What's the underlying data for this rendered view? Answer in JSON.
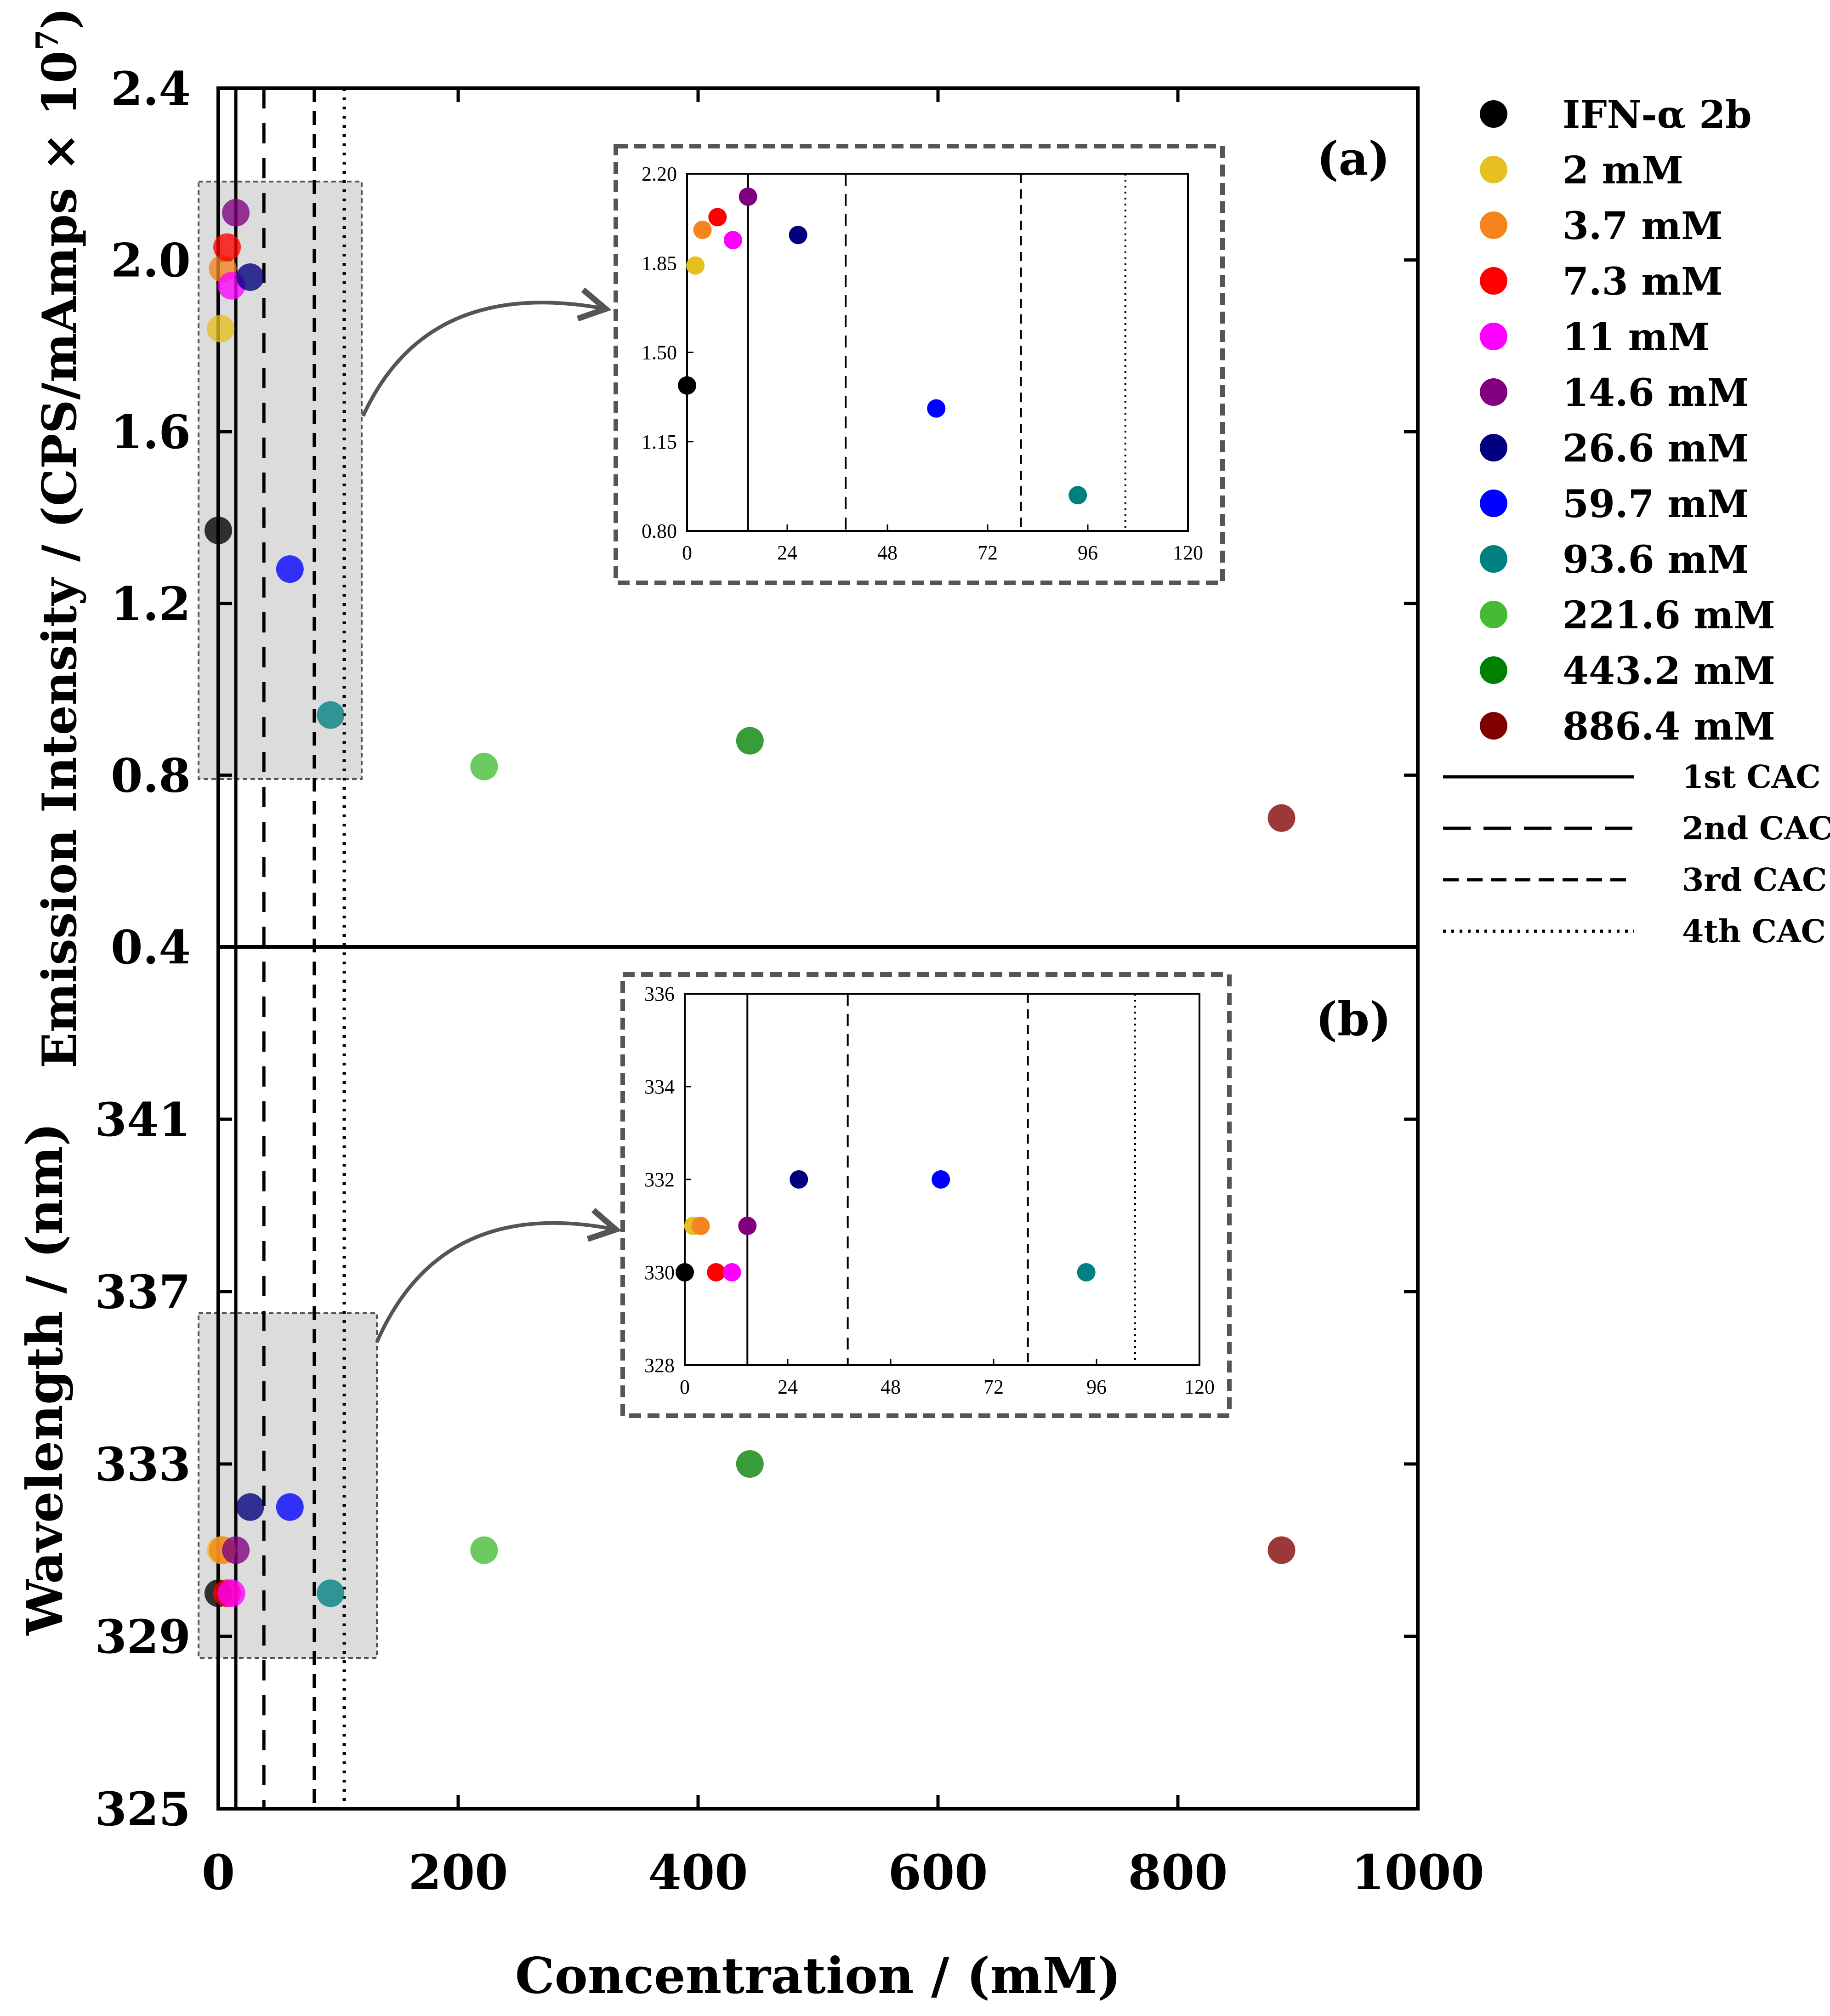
{
  "chart_data": {
    "type": "scatter",
    "x_label": "Concentration / (mM)",
    "x_range": [
      0,
      1000
    ],
    "x_ticks": [
      "0",
      "200",
      "400",
      "600",
      "800",
      "1000"
    ],
    "series_names": [
      "IFN-α 2b",
      "2 mM",
      "3.7 mM",
      "7.3 mM",
      "11 mM",
      "14.6 mM",
      "26.6 mM",
      "59.7 mM",
      "93.6 mM",
      "221.6 mM",
      "443.2 mM",
      "886.4 mM"
    ],
    "colors": [
      "#000000",
      "#e6c020",
      "#f5841f",
      "#ff0000",
      "#ff00ff",
      "#800080",
      "#00007f",
      "#0000ff",
      "#008080",
      "#44bb33",
      "#008000",
      "#800000"
    ],
    "cac_labels": [
      "1st CAC",
      "2nd CAC",
      "3rd CAC",
      "4th CAC"
    ],
    "cac_x": [
      14.6,
      38,
      80,
      105
    ],
    "panel_a": {
      "label": "(a)",
      "y_label": "Emission Intensity / (CPS/mAmps × 10",
      "y_exp": "7",
      "y_close": ")",
      "y_range": [
        0.4,
        2.4
      ],
      "y_ticks": [
        "0.4",
        "0.8",
        "1.2",
        "1.6",
        "2.0",
        "2.4"
      ],
      "points": [
        {
          "x": 0,
          "y": 1.37
        },
        {
          "x": 2,
          "y": 1.84
        },
        {
          "x": 3.7,
          "y": 1.98
        },
        {
          "x": 7.3,
          "y": 2.03
        },
        {
          "x": 11,
          "y": 1.94
        },
        {
          "x": 14.6,
          "y": 2.11
        },
        {
          "x": 26.6,
          "y": 1.96
        },
        {
          "x": 59.7,
          "y": 1.28
        },
        {
          "x": 93.6,
          "y": 0.94
        },
        {
          "x": 221.6,
          "y": 0.82
        },
        {
          "x": 443.2,
          "y": 0.88
        },
        {
          "x": 886.4,
          "y": 0.7
        }
      ],
      "inset": {
        "x_range": [
          0,
          120
        ],
        "y_range": [
          0.8,
          2.2
        ],
        "x_ticks": [
          "0",
          "24",
          "48",
          "72",
          "96",
          "120"
        ],
        "y_ticks": [
          "0.80",
          "1.15",
          "1.50",
          "1.85",
          "2.20"
        ]
      }
    },
    "panel_b": {
      "label": "(b)",
      "y_label": "Wavelength / (nm)",
      "y_range": [
        325,
        345
      ],
      "y_ticks": [
        "325",
        "329",
        "333",
        "337",
        "341"
      ],
      "points": [
        {
          "x": 0,
          "y": 330
        },
        {
          "x": 2,
          "y": 331
        },
        {
          "x": 3.7,
          "y": 331
        },
        {
          "x": 7.3,
          "y": 330
        },
        {
          "x": 11,
          "y": 330
        },
        {
          "x": 14.6,
          "y": 331
        },
        {
          "x": 26.6,
          "y": 332
        },
        {
          "x": 59.7,
          "y": 332
        },
        {
          "x": 93.6,
          "y": 330
        },
        {
          "x": 221.6,
          "y": 331
        },
        {
          "x": 443.2,
          "y": 333
        },
        {
          "x": 886.4,
          "y": 331
        }
      ],
      "inset": {
        "x_range": [
          0,
          120
        ],
        "y_range": [
          328,
          336
        ],
        "x_ticks": [
          "0",
          "24",
          "48",
          "72",
          "96",
          "120"
        ],
        "y_ticks": [
          "328",
          "330",
          "332",
          "334",
          "336"
        ]
      }
    }
  }
}
